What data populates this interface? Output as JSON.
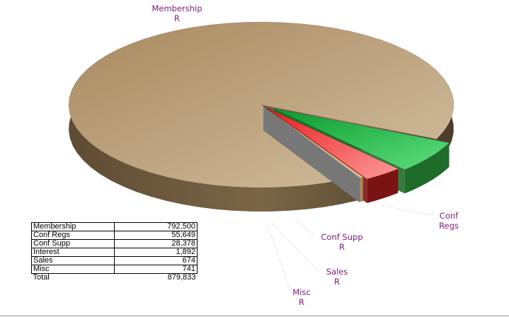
{
  "chart_data": {
    "type": "pie",
    "slices": [
      {
        "name": "Membership",
        "value": 792500,
        "label": "Membership R",
        "color": "#b89a72"
      },
      {
        "name": "Conf Regs",
        "value": 55649,
        "label": "Conf Regs",
        "color": "#1cb33c"
      },
      {
        "name": "Conf Supp",
        "value": 28378,
        "label": "Conf Supp R",
        "color": "#ee3b3b"
      },
      {
        "name": "Interest",
        "value": 1892,
        "label": "",
        "color": "#f4c08a"
      },
      {
        "name": "Sales",
        "value": 674,
        "label": "Sales R",
        "color": "#d8d8d8"
      },
      {
        "name": "Misc",
        "value": 741,
        "label": "Misc R",
        "color": "#9a9a9a"
      }
    ],
    "total": 879833
  },
  "table": {
    "rows": [
      {
        "name": "Membership",
        "value": "792,500"
      },
      {
        "name": "Conf Regs",
        "value": "55,649"
      },
      {
        "name": "Conf Supp",
        "value": "28,378"
      },
      {
        "name": "Interest",
        "value": "1,892"
      },
      {
        "name": "Sales",
        "value": "674"
      },
      {
        "name": "Misc",
        "value": "741"
      }
    ],
    "total_label": "Total",
    "total_value": "879,833"
  },
  "labels": {
    "membership": [
      "Membership",
      "R"
    ],
    "conf_regs": [
      "Conf",
      "Regs"
    ],
    "conf_supp": [
      "Conf Supp",
      "R"
    ],
    "sales": [
      "Sales",
      "R"
    ],
    "misc": [
      "Misc",
      "R"
    ]
  }
}
